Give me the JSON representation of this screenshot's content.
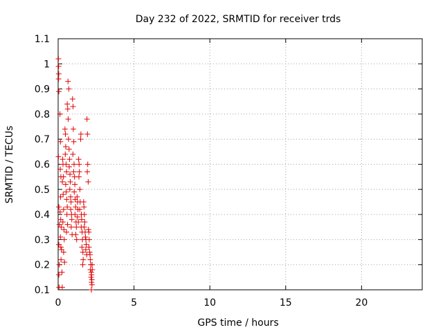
{
  "chart_data": {
    "type": "scatter",
    "title": "Day 232 of 2022, SRMTID for receiver trds",
    "xlabel": "GPS time / hours",
    "ylabel": "SRMTID / TECUs",
    "xlim": [
      0,
      24
    ],
    "ylim": [
      0.1,
      1.1
    ],
    "xticks": [
      0,
      5,
      10,
      15,
      20
    ],
    "xtick_labels": [
      "0",
      "5",
      "10",
      "15",
      "20"
    ],
    "yticks": [
      0.1,
      0.2,
      0.3,
      0.4,
      0.5,
      0.6,
      0.7,
      0.8,
      0.9,
      1.0,
      1.1
    ],
    "ytick_labels": [
      "0.1",
      "0.2",
      "0.3",
      "0.4",
      "0.5",
      "0.6",
      "0.7",
      "0.8",
      "0.9",
      "1",
      "1.1"
    ],
    "grid": true,
    "marker": "+",
    "color": "#e00000",
    "series": [
      {
        "name": "SRMTID",
        "points": [
          [
            0.02,
            1.02
          ],
          [
            0.03,
            0.99
          ],
          [
            0.04,
            0.96
          ],
          [
            0.03,
            0.94
          ],
          [
            0.05,
            0.89
          ],
          [
            0.02,
            0.63
          ],
          [
            0.05,
            0.43
          ],
          [
            0.08,
            0.36
          ],
          [
            0.05,
            0.28
          ],
          [
            0.07,
            0.2
          ],
          [
            0.05,
            0.16
          ],
          [
            0.06,
            0.11
          ],
          [
            0.12,
            0.8
          ],
          [
            0.15,
            0.69
          ],
          [
            0.14,
            0.58
          ],
          [
            0.18,
            0.55
          ],
          [
            0.16,
            0.47
          ],
          [
            0.13,
            0.41
          ],
          [
            0.17,
            0.38
          ],
          [
            0.2,
            0.35
          ],
          [
            0.15,
            0.31
          ],
          [
            0.18,
            0.27
          ],
          [
            0.22,
            0.26
          ],
          [
            0.19,
            0.22
          ],
          [
            0.25,
            0.17
          ],
          [
            0.27,
            0.11
          ],
          [
            0.3,
            0.62
          ],
          [
            0.32,
            0.6
          ],
          [
            0.35,
            0.55
          ],
          [
            0.28,
            0.53
          ],
          [
            0.33,
            0.48
          ],
          [
            0.36,
            0.42
          ],
          [
            0.31,
            0.37
          ],
          [
            0.38,
            0.34
          ],
          [
            0.4,
            0.3
          ],
          [
            0.36,
            0.25
          ],
          [
            0.42,
            0.21
          ],
          [
            0.45,
            0.74
          ],
          [
            0.48,
            0.72
          ],
          [
            0.5,
            0.67
          ],
          [
            0.47,
            0.64
          ],
          [
            0.52,
            0.6
          ],
          [
            0.55,
            0.57
          ],
          [
            0.5,
            0.52
          ],
          [
            0.53,
            0.49
          ],
          [
            0.56,
            0.46
          ],
          [
            0.6,
            0.43
          ],
          [
            0.58,
            0.4
          ],
          [
            0.62,
            0.36
          ],
          [
            0.55,
            0.33
          ],
          [
            0.6,
            0.84
          ],
          [
            0.63,
            0.82
          ],
          [
            0.66,
            0.78
          ],
          [
            0.65,
            0.93
          ],
          [
            0.7,
            0.9
          ],
          [
            0.68,
            0.7
          ],
          [
            0.72,
            0.66
          ],
          [
            0.75,
            0.62
          ],
          [
            0.73,
            0.59
          ],
          [
            0.78,
            0.56
          ],
          [
            0.8,
            0.53
          ],
          [
            0.77,
            0.5
          ],
          [
            0.82,
            0.47
          ],
          [
            0.85,
            0.45
          ],
          [
            0.83,
            0.42
          ],
          [
            0.88,
            0.4
          ],
          [
            0.9,
            0.38
          ],
          [
            0.86,
            0.35
          ],
          [
            0.92,
            0.32
          ],
          [
            0.95,
            0.86
          ],
          [
            0.98,
            0.83
          ],
          [
            1.0,
            0.74
          ],
          [
            1.03,
            0.69
          ],
          [
            0.97,
            0.64
          ],
          [
            1.05,
            0.6
          ],
          [
            1.02,
            0.57
          ],
          [
            1.08,
            0.55
          ],
          [
            1.1,
            0.52
          ],
          [
            1.06,
            0.49
          ],
          [
            1.12,
            0.46
          ],
          [
            1.15,
            0.43
          ],
          [
            1.11,
            0.4
          ],
          [
            1.18,
            0.37
          ],
          [
            1.2,
            0.35
          ],
          [
            1.16,
            0.32
          ],
          [
            1.22,
            0.3
          ],
          [
            1.25,
            0.47
          ],
          [
            1.28,
            0.45
          ],
          [
            1.3,
            0.42
          ],
          [
            1.27,
            0.39
          ],
          [
            1.33,
            0.37
          ],
          [
            1.35,
            0.62
          ],
          [
            1.38,
            0.6
          ],
          [
            1.4,
            0.57
          ],
          [
            1.37,
            0.55
          ],
          [
            1.43,
            0.5
          ],
          [
            1.45,
            0.45
          ],
          [
            1.42,
            0.42
          ],
          [
            1.48,
            0.7
          ],
          [
            1.5,
            0.72
          ],
          [
            1.53,
            0.4
          ],
          [
            1.55,
            0.38
          ],
          [
            1.52,
            0.35
          ],
          [
            1.58,
            0.33
          ],
          [
            1.6,
            0.3
          ],
          [
            1.57,
            0.27
          ],
          [
            1.63,
            0.25
          ],
          [
            1.65,
            0.22
          ],
          [
            1.62,
            0.2
          ],
          [
            1.68,
            0.45
          ],
          [
            1.7,
            0.43
          ],
          [
            1.73,
            0.4
          ],
          [
            1.75,
            0.37
          ],
          [
            1.72,
            0.35
          ],
          [
            1.78,
            0.33
          ],
          [
            1.8,
            0.31
          ],
          [
            1.83,
            0.3
          ],
          [
            1.85,
            0.28
          ],
          [
            1.82,
            0.26
          ],
          [
            1.88,
            0.24
          ],
          [
            1.9,
            0.78
          ],
          [
            1.93,
            0.72
          ],
          [
            1.95,
            0.6
          ],
          [
            1.92,
            0.57
          ],
          [
            1.98,
            0.53
          ],
          [
            2.0,
            0.34
          ],
          [
            2.02,
            0.33
          ],
          [
            2.05,
            0.3
          ],
          [
            2.03,
            0.27
          ],
          [
            2.08,
            0.25
          ],
          [
            2.1,
            0.24
          ],
          [
            2.12,
            0.22
          ],
          [
            2.15,
            0.2
          ],
          [
            2.13,
            0.18
          ],
          [
            2.18,
            0.17
          ],
          [
            2.2,
            0.16
          ],
          [
            2.17,
            0.15
          ],
          [
            2.22,
            0.14
          ],
          [
            2.2,
            0.13
          ],
          [
            2.23,
            0.12
          ],
          [
            2.25,
            0.18
          ],
          [
            2.24,
            0.2
          ],
          [
            2.19,
            0.1
          ]
        ]
      }
    ]
  }
}
